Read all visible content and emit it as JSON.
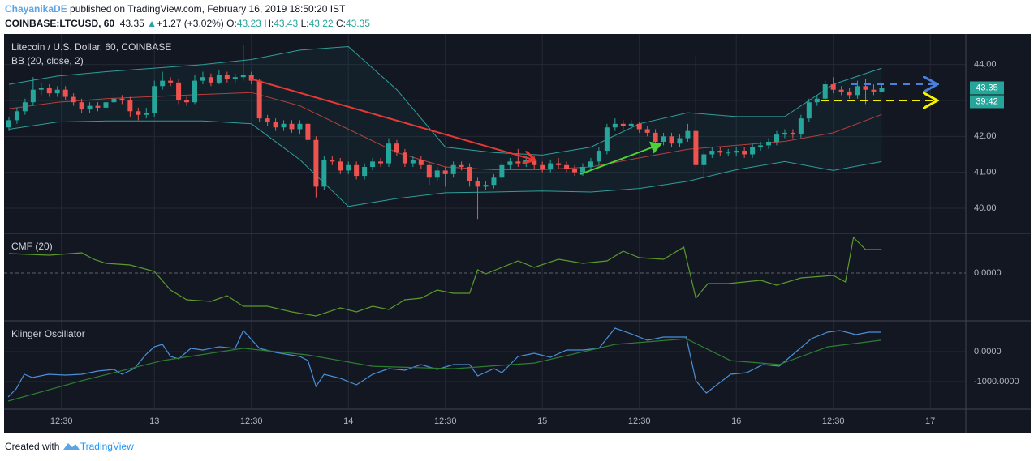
{
  "header": {
    "author": "ChayanikaDE",
    "published": "published on TradingView.com, February 16, 2019 18:50:20 IST",
    "symbol": "COINBASE:LTCUSD, 60",
    "last": "43.35",
    "change": "+1.27 (+3.02%)",
    "ohlc": [
      {
        "key": "O:",
        "value": "43.23"
      },
      {
        "key": "H:",
        "value": "43.43"
      },
      {
        "key": "L:",
        "value": "43.22"
      },
      {
        "key": "C:",
        "value": "43.35"
      }
    ]
  },
  "footer": {
    "text": "Created with",
    "brand": "TradingView"
  },
  "chart_data": [
    {
      "type": "candlestick",
      "title": "Litecoin / U.S. Dollar, 60, COINBASE",
      "indicator": "BB (20, close, 2)",
      "up_color": "#26a69a",
      "down_color": "#ef5350",
      "x": [
        -18,
        -17,
        -16,
        -15,
        -14,
        -13,
        -12,
        -11,
        -10,
        -9,
        -8,
        -7,
        -6,
        -5,
        -4,
        -3,
        -2,
        -1,
        0,
        1,
        2,
        3,
        4,
        5,
        6,
        7,
        8,
        9,
        10,
        11,
        12,
        13,
        14,
        15,
        16,
        17,
        18,
        19,
        20,
        21,
        22,
        23,
        24,
        25,
        26,
        27,
        28,
        29,
        30,
        31,
        32,
        33,
        34,
        35,
        36,
        37,
        38,
        39,
        40,
        41,
        42,
        43,
        44,
        45,
        46,
        47,
        48,
        49,
        50,
        51,
        52,
        53,
        54,
        55,
        56,
        57,
        58,
        59,
        60,
        61,
        62,
        63,
        64,
        65,
        66,
        67,
        68,
        69,
        70,
        71,
        72,
        73,
        74,
        75,
        76,
        77,
        78,
        79,
        80,
        81,
        82,
        83,
        84,
        85,
        86,
        87,
        88,
        89,
        90
      ],
      "open": [
        42.25,
        42.45,
        42.7,
        42.95,
        43.3,
        43.35,
        43.2,
        43.3,
        43.1,
        42.95,
        42.75,
        42.85,
        42.8,
        42.95,
        43.05,
        43.0,
        42.7,
        42.6,
        42.65,
        43.4,
        43.55,
        43.5,
        43.0,
        42.95,
        43.55,
        43.65,
        43.5,
        43.7,
        43.6,
        43.65,
        43.7,
        43.55,
        42.5,
        42.4,
        42.25,
        42.35,
        42.2,
        42.35,
        41.9,
        40.6,
        41.35,
        41.3,
        41.05,
        41.2,
        40.9,
        41.15,
        41.3,
        41.25,
        41.8,
        41.55,
        41.25,
        41.35,
        41.2,
        40.85,
        41.05,
        40.95,
        41.2,
        41.15,
        40.75,
        40.6,
        40.65,
        40.85,
        41.2,
        41.3,
        41.25,
        41.35,
        41.2,
        41.1,
        41.25,
        41.2,
        41.1,
        41.0,
        41.15,
        41.3,
        41.6,
        42.25,
        42.35,
        42.3,
        42.35,
        42.2,
        42.1,
        41.85,
        42.0,
        41.8,
        41.95,
        42.15,
        41.2,
        41.5,
        41.6,
        41.55,
        41.55,
        41.6,
        41.5,
        41.7,
        41.75,
        41.85,
        42.05,
        42.1,
        42.05,
        42.5,
        42.95,
        43.05,
        43.45,
        43.3,
        43.25,
        43.15,
        43.4,
        43.3,
        43.25
      ],
      "high": [
        42.55,
        42.8,
        43.05,
        43.65,
        43.5,
        43.45,
        43.4,
        43.4,
        43.2,
        43.05,
        42.95,
        42.95,
        43.05,
        43.2,
        43.15,
        43.1,
        42.8,
        42.8,
        43.55,
        43.8,
        43.65,
        43.6,
        43.1,
        43.7,
        43.8,
        43.75,
        43.85,
        43.8,
        43.75,
        44.55,
        43.8,
        43.6,
        42.6,
        42.5,
        42.45,
        42.45,
        42.45,
        42.4,
        42.0,
        41.45,
        41.45,
        41.4,
        41.3,
        41.3,
        41.25,
        41.4,
        41.4,
        41.95,
        41.9,
        41.65,
        41.45,
        41.45,
        41.3,
        41.15,
        41.15,
        41.3,
        41.3,
        41.25,
        40.85,
        40.75,
        40.95,
        41.3,
        41.4,
        41.65,
        41.45,
        41.45,
        41.3,
        41.35,
        41.4,
        41.3,
        41.2,
        41.25,
        41.4,
        41.7,
        42.35,
        42.5,
        42.45,
        42.45,
        42.4,
        42.3,
        42.2,
        42.1,
        42.1,
        42.05,
        42.35,
        44.25,
        41.6,
        41.7,
        41.7,
        41.65,
        41.7,
        41.7,
        41.8,
        41.85,
        41.95,
        42.15,
        42.2,
        42.2,
        42.6,
        43.05,
        43.15,
        43.55,
        43.65,
        43.4,
        43.35,
        43.55,
        43.6,
        43.45,
        43.43
      ],
      "low": [
        42.15,
        42.35,
        42.6,
        42.85,
        43.15,
        43.1,
        43.1,
        43.0,
        42.85,
        42.65,
        42.65,
        42.7,
        42.7,
        42.85,
        42.9,
        42.55,
        42.45,
        42.5,
        42.55,
        43.3,
        43.4,
        42.9,
        42.85,
        42.9,
        43.45,
        43.4,
        43.45,
        43.5,
        43.5,
        43.55,
        43.45,
        42.4,
        42.3,
        42.15,
        42.15,
        42.1,
        42.05,
        41.8,
        40.3,
        40.5,
        41.2,
        40.95,
        40.95,
        40.8,
        40.8,
        41.05,
        41.15,
        41.15,
        41.45,
        41.15,
        41.15,
        41.1,
        40.65,
        40.75,
        40.6,
        40.85,
        41.05,
        40.6,
        39.7,
        40.5,
        40.55,
        40.75,
        41.1,
        41.15,
        41.15,
        41.1,
        41.0,
        41.0,
        41.1,
        41.0,
        40.9,
        40.9,
        41.05,
        41.2,
        41.5,
        42.15,
        42.2,
        42.2,
        42.1,
        42.0,
        41.75,
        41.75,
        41.7,
        41.7,
        41.85,
        41.1,
        40.85,
        41.4,
        41.45,
        41.45,
        41.45,
        41.4,
        41.4,
        41.6,
        41.65,
        41.75,
        41.95,
        41.95,
        41.95,
        42.4,
        42.85,
        42.95,
        43.2,
        43.15,
        43.05,
        43.05,
        42.9,
        43.15,
        43.22
      ],
      "close": [
        42.45,
        42.7,
        42.95,
        43.3,
        43.35,
        43.2,
        43.3,
        43.1,
        42.95,
        42.75,
        42.85,
        42.8,
        42.95,
        43.05,
        43.0,
        42.7,
        42.6,
        42.65,
        43.4,
        43.55,
        43.5,
        43.0,
        42.95,
        43.55,
        43.65,
        43.5,
        43.7,
        43.6,
        43.65,
        43.7,
        43.55,
        42.5,
        42.4,
        42.25,
        42.35,
        42.2,
        42.35,
        41.9,
        40.6,
        41.35,
        41.3,
        41.05,
        41.2,
        40.9,
        41.15,
        41.3,
        41.25,
        41.8,
        41.55,
        41.25,
        41.35,
        41.2,
        40.85,
        41.05,
        40.95,
        41.2,
        41.15,
        40.75,
        40.6,
        40.65,
        40.85,
        41.2,
        41.3,
        41.25,
        41.35,
        41.2,
        41.1,
        41.25,
        41.2,
        41.1,
        41.0,
        41.15,
        41.3,
        41.6,
        42.25,
        42.35,
        42.3,
        42.35,
        42.2,
        42.1,
        41.85,
        42.0,
        41.8,
        41.95,
        42.15,
        41.2,
        41.5,
        41.6,
        41.55,
        41.55,
        41.6,
        41.5,
        41.7,
        41.75,
        41.85,
        42.05,
        42.1,
        42.05,
        42.5,
        42.95,
        43.05,
        43.45,
        43.3,
        43.25,
        43.15,
        43.4,
        43.3,
        43.25,
        43.35
      ],
      "bands": {
        "x": [
          -18,
          -12,
          -6,
          0,
          6,
          12,
          18,
          24,
          30,
          36,
          42,
          48,
          54,
          60,
          66,
          72,
          78,
          84,
          90
        ],
        "series": [
          {
            "color": "#2e9e9a",
            "values": [
              43.45,
              43.68,
              43.8,
              43.9,
              44.0,
              44.14,
              44.4,
              44.5,
              43.3,
              41.7,
              41.55,
              41.48,
              41.7,
              42.35,
              42.66,
              42.55,
              42.55,
              43.45,
              43.9
            ]
          },
          {
            "color": "#b5403f",
            "values": [
              42.77,
              42.95,
              43.05,
              43.11,
              43.17,
              43.22,
              42.85,
              42.2,
              41.55,
              41.15,
              41.07,
              41.07,
              41.15,
              41.4,
              41.64,
              41.75,
              41.86,
              42.1,
              42.61
            ]
          },
          {
            "color": "#2e9e9a",
            "values": [
              42.2,
              42.4,
              42.43,
              42.43,
              42.43,
              42.35,
              41.35,
              40.05,
              40.27,
              40.43,
              40.45,
              40.48,
              40.45,
              40.55,
              40.75,
              41.07,
              41.3,
              41.05,
              41.3
            ]
          }
        ]
      },
      "last_price": {
        "value": 43.35,
        "label": "43.35"
      },
      "countdown": "39:42",
      "ylim": [
        39.3,
        44.85
      ],
      "yticks": [
        {
          "value": 40,
          "label": "40.00"
        },
        {
          "value": 41,
          "label": "41.00"
        },
        {
          "value": 42,
          "label": "42.00"
        },
        {
          "value": 43,
          "label": "43.00"
        },
        {
          "value": 44,
          "label": "44.00"
        }
      ],
      "xlim": [
        -18.6,
        100.4
      ],
      "xticks": [
        {
          "value": -11.5,
          "label": "12:30"
        },
        {
          "value": 0,
          "label": "13"
        },
        {
          "value": 12,
          "label": "12:30"
        },
        {
          "value": 24,
          "label": "14"
        },
        {
          "value": 36,
          "label": "12:30"
        },
        {
          "value": 48,
          "label": "15"
        },
        {
          "value": 60,
          "label": "12:30"
        },
        {
          "value": 72,
          "label": "16"
        },
        {
          "value": 84,
          "label": "12:30"
        },
        {
          "value": 96,
          "label": "17"
        }
      ],
      "grid": true
    },
    {
      "type": "line",
      "title": "CMF (20)",
      "series": [
        {
          "color": "#5b9a2c",
          "x": [
            -18,
            -13,
            -9,
            -7.5,
            -6,
            -3,
            0,
            2,
            4,
            7,
            9,
            11,
            14,
            17,
            20,
            23,
            25,
            27,
            29,
            31,
            33,
            35,
            37,
            39,
            40,
            41,
            43,
            45,
            47,
            50,
            53,
            56,
            58,
            60,
            63,
            65.5,
            67,
            68.5,
            71,
            75,
            77,
            80,
            84,
            85.5,
            86.5,
            88,
            90
          ],
          "values": [
            0.12,
            0.11,
            0.125,
            0.085,
            0.06,
            0.05,
            0.01,
            -0.105,
            -0.165,
            -0.175,
            -0.14,
            -0.205,
            -0.205,
            -0.24,
            -0.265,
            -0.215,
            -0.24,
            -0.205,
            -0.225,
            -0.165,
            -0.155,
            -0.105,
            -0.125,
            -0.125,
            0.02,
            -0.005,
            0.035,
            0.075,
            0.035,
            0.085,
            0.06,
            0.075,
            0.135,
            0.095,
            0.085,
            0.16,
            -0.155,
            -0.065,
            -0.065,
            -0.045,
            -0.075,
            -0.03,
            -0.015,
            -0.055,
            0.22,
            0.145,
            0.145
          ]
        }
      ],
      "ylim": [
        -0.295,
        0.245
      ],
      "yticks": [
        {
          "value": 0,
          "label": "0.0000"
        }
      ],
      "zero_line": "dashed"
    },
    {
      "type": "line",
      "title": "Klinger Oscillator",
      "series": [
        {
          "color": "#4a90d9",
          "x": [
            -18.1,
            -17.1,
            -16.1,
            -15.1,
            -13.1,
            -11,
            -9,
            -7,
            -5,
            -4,
            -2.5,
            -1,
            0,
            1,
            2,
            3,
            4.5,
            6,
            8,
            10,
            11,
            13,
            15,
            18,
            19,
            20,
            21,
            23,
            25,
            27,
            29,
            31,
            33,
            35,
            37,
            39,
            40,
            42,
            43,
            45,
            47,
            49,
            51,
            53,
            55,
            57,
            59,
            61,
            63,
            65.8,
            67,
            68.3,
            71.3,
            73.3,
            75.3,
            77.3,
            79.3,
            81.3,
            83.3,
            84.8,
            86.8,
            88.4,
            89.9
          ],
          "values": [
            -1514,
            -1243,
            -757,
            -865,
            -757,
            -784,
            -757,
            -649,
            -595,
            -757,
            -568,
            -81,
            162,
            243,
            -162,
            -243,
            108,
            54,
            162,
            108,
            703,
            108,
            -27,
            -162,
            -297,
            -1162,
            -757,
            -892,
            -1108,
            -757,
            -568,
            -622,
            -432,
            -595,
            -432,
            -432,
            -811,
            -568,
            -703,
            -162,
            -54,
            -189,
            54,
            54,
            108,
            784,
            595,
            378,
            486,
            486,
            -973,
            -1378,
            -757,
            -703,
            -432,
            -486,
            -27,
            432,
            649,
            703,
            568,
            649,
            649
          ]
        },
        {
          "color": "#2e7d32",
          "x": [
            -18.1,
            -9,
            1,
            11,
            19,
            27,
            37,
            47,
            57,
            65.8,
            71.3,
            77.3,
            83.3,
            89.9
          ],
          "values": [
            -1650,
            -970,
            -300,
            110,
            -110,
            -490,
            -570,
            -380,
            240,
            430,
            -300,
            -430,
            160,
            380
          ]
        }
      ],
      "ylim": [
        -1919,
        1027
      ],
      "yticks": [
        {
          "value": 0,
          "label": "0.0000"
        },
        {
          "value": -1000,
          "label": "-1000.0000"
        }
      ]
    }
  ]
}
